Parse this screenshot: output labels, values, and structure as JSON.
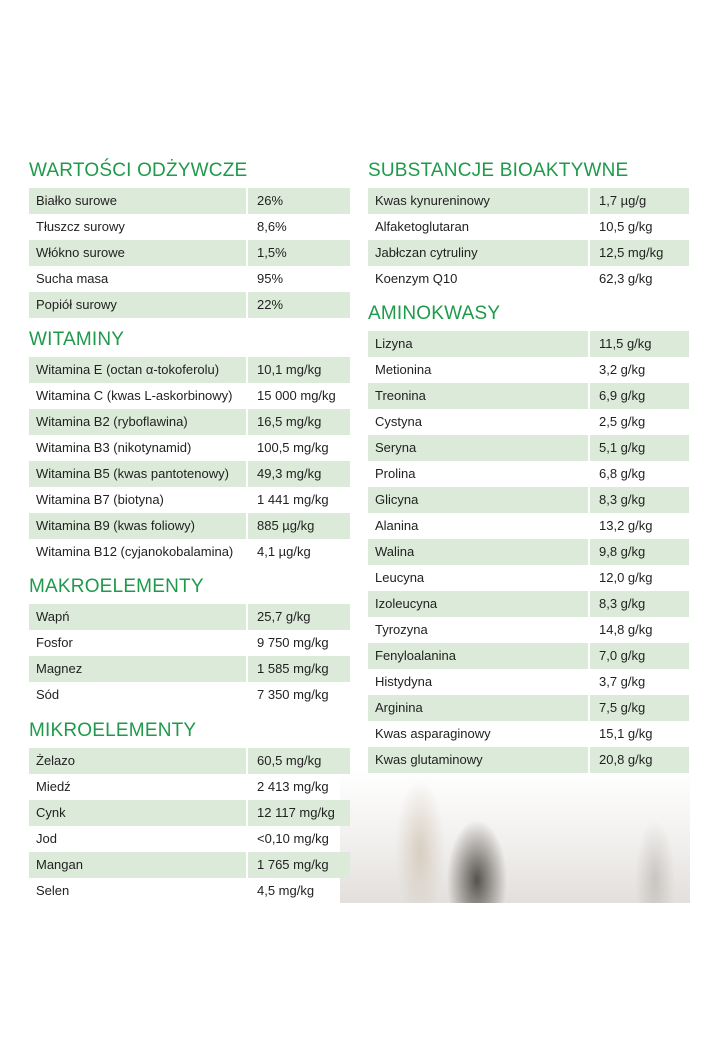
{
  "left": [
    {
      "title": "WARTOŚCI ODŻYWCZE",
      "rows": [
        [
          "Białko surowe",
          "26%"
        ],
        [
          "Tłuszcz surowy",
          "8,6%"
        ],
        [
          "Włókno surowe",
          "1,5%"
        ],
        [
          "Sucha masa",
          "95%"
        ],
        [
          "Popiół surowy",
          "22%"
        ]
      ]
    },
    {
      "title": "WITAMINY",
      "rows": [
        [
          "Witamina E (octan α-tokoferolu)",
          "10,1 mg/kg"
        ],
        [
          "Witamina C (kwas L-askorbinowy)",
          "15 000 mg/kg"
        ],
        [
          "Witamina B2 (ryboflawina)",
          "16,5 mg/kg"
        ],
        [
          "Witamina B3 (nikotynamid)",
          "100,5 mg/kg"
        ],
        [
          "Witamina B5 (kwas pantotenowy)",
          "49,3 mg/kg"
        ],
        [
          "Witamina B7 (biotyna)",
          "1 441 mg/kg"
        ],
        [
          "Witamina B9 (kwas foliowy)",
          "885 µg/kg"
        ],
        [
          "Witamina B12 (cyjanokobalamina)",
          "4,1 µg/kg"
        ]
      ]
    },
    {
      "title": "MAKROELEMENTY",
      "rows": [
        [
          "Wapń",
          "25,7 g/kg"
        ],
        [
          "Fosfor",
          "9 750 mg/kg"
        ],
        [
          "Magnez",
          "1 585 mg/kg"
        ],
        [
          "Sód",
          "7 350 mg/kg"
        ]
      ]
    },
    {
      "title": "MIKROELEMENTY",
      "rows": [
        [
          "Żelazo",
          "60,5 mg/kg"
        ],
        [
          "Miedź",
          "2 413 mg/kg"
        ],
        [
          "Cynk",
          "12 117 mg/kg"
        ],
        [
          "Jod",
          "<0,10 mg/kg"
        ],
        [
          "Mangan",
          "1 765 mg/kg"
        ],
        [
          "Selen",
          "4,5 mg/kg"
        ]
      ]
    }
  ],
  "right": [
    {
      "title": "SUBSTANCJE BIOAKTYWNE",
      "rows": [
        [
          "Kwas kynureninowy",
          "1,7 µg/g"
        ],
        [
          "Alfaketoglutaran",
          "10,5 g/kg"
        ],
        [
          "Jabłczan cytruliny",
          "12,5 mg/kg"
        ],
        [
          "Koenzym Q10",
          "62,3 g/kg"
        ]
      ]
    },
    {
      "title": "AMINOKWASY",
      "rows": [
        [
          "Lizyna",
          "11,5 g/kg"
        ],
        [
          "Metionina",
          "3,2 g/kg"
        ],
        [
          "Treonina",
          "6,9 g/kg"
        ],
        [
          "Cystyna",
          "2,5 g/kg"
        ],
        [
          "Seryna",
          "5,1 g/kg"
        ],
        [
          "Prolina",
          "6,8 g/kg"
        ],
        [
          "Glicyna",
          "8,3 g/kg"
        ],
        [
          "Alanina",
          "13,2 g/kg"
        ],
        [
          "Walina",
          "9,8 g/kg"
        ],
        [
          "Leucyna",
          "12,0 g/kg"
        ],
        [
          "Izoleucyna",
          "8,3 g/kg"
        ],
        [
          "Tyrozyna",
          "14,8 g/kg"
        ],
        [
          "Fenyloalanina",
          "7,0 g/kg"
        ],
        [
          "Histydyna",
          "3,7 g/kg"
        ],
        [
          "Arginina",
          "7,5 g/kg"
        ],
        [
          "Kwas asparaginowy",
          "15,1 g/kg"
        ],
        [
          "Kwas glutaminowy",
          "20,8 g/kg"
        ]
      ]
    }
  ],
  "colors": {
    "heading": "#1f9a4b",
    "stripe": "#dcebd9"
  }
}
